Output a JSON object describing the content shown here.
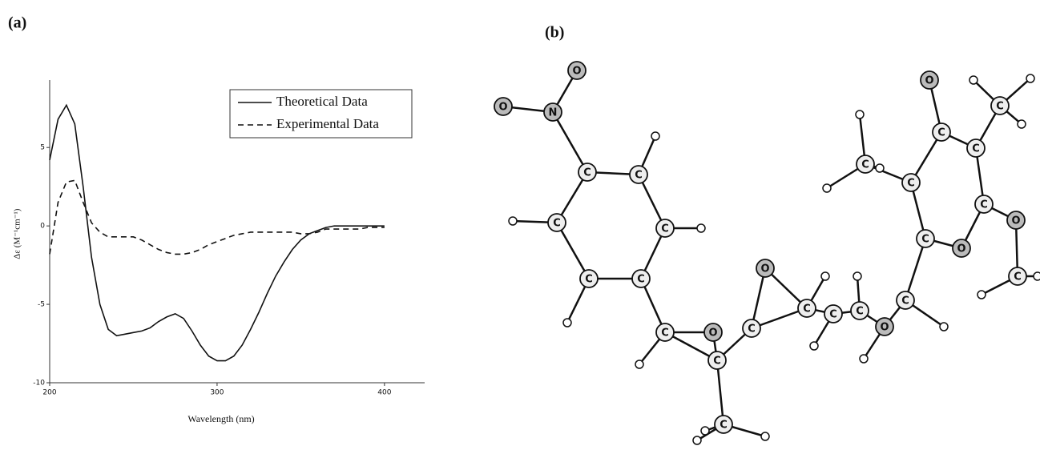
{
  "panel_labels": [
    "(a)",
    "(b)"
  ],
  "chart_data": {
    "type": "line",
    "ylabel": "Δε (M⁻¹cm⁻¹)",
    "xlabel": "Wavelength (nm)",
    "x": [
      200,
      205,
      210,
      215,
      220,
      225,
      230,
      235,
      240,
      245,
      250,
      255,
      260,
      265,
      270,
      275,
      280,
      285,
      290,
      295,
      300,
      305,
      310,
      315,
      320,
      325,
      330,
      335,
      340,
      345,
      350,
      355,
      360,
      365,
      370,
      375,
      380,
      385,
      390,
      395,
      400
    ],
    "series": [
      {
        "name": "Theoretical Data",
        "color": "#111111",
        "dash": false,
        "values": [
          4.2,
          6.8,
          7.7,
          6.5,
          2.5,
          -2.0,
          -5.0,
          -6.6,
          -7.0,
          -6.9,
          -6.8,
          -6.7,
          -6.5,
          -6.1,
          -5.8,
          -5.6,
          -5.9,
          -6.7,
          -7.6,
          -8.3,
          -8.6,
          -8.6,
          -8.3,
          -7.6,
          -6.6,
          -5.5,
          -4.3,
          -3.2,
          -2.3,
          -1.5,
          -0.9,
          -0.5,
          -0.3,
          -0.1,
          0,
          0,
          0,
          0,
          0,
          0,
          0
        ]
      },
      {
        "name": "Experimental Data",
        "color": "#111111",
        "dash": true,
        "values": [
          -1.8,
          1.5,
          2.8,
          2.9,
          1.5,
          0.2,
          -0.4,
          -0.7,
          -0.7,
          -0.7,
          -0.7,
          -0.9,
          -1.2,
          -1.5,
          -1.7,
          -1.8,
          -1.8,
          -1.7,
          -1.5,
          -1.2,
          -1.0,
          -0.8,
          -0.6,
          -0.5,
          -0.4,
          -0.4,
          -0.4,
          -0.4,
          -0.4,
          -0.4,
          -0.5,
          -0.5,
          -0.4,
          -0.2,
          -0.2,
          -0.2,
          -0.2,
          -0.2,
          -0.1,
          -0.1,
          -0.1
        ]
      }
    ],
    "xlim": [
      200,
      424
    ],
    "ylim": [
      -10,
      9.3
    ],
    "xticks": [
      200,
      300,
      400
    ],
    "yticks": [
      -10,
      -5,
      0,
      5
    ],
    "legend": "upper right"
  },
  "molecule": {
    "atoms": [
      "O",
      "O",
      "N",
      "C",
      "C",
      "C",
      "C",
      "C",
      "C",
      "C",
      "O",
      "C",
      "C",
      "O",
      "C",
      "C",
      "C",
      "C",
      "O",
      "C",
      "C",
      "O",
      "C",
      "C",
      "C",
      "O",
      "C",
      "C",
      "O",
      "C",
      "C"
    ]
  }
}
